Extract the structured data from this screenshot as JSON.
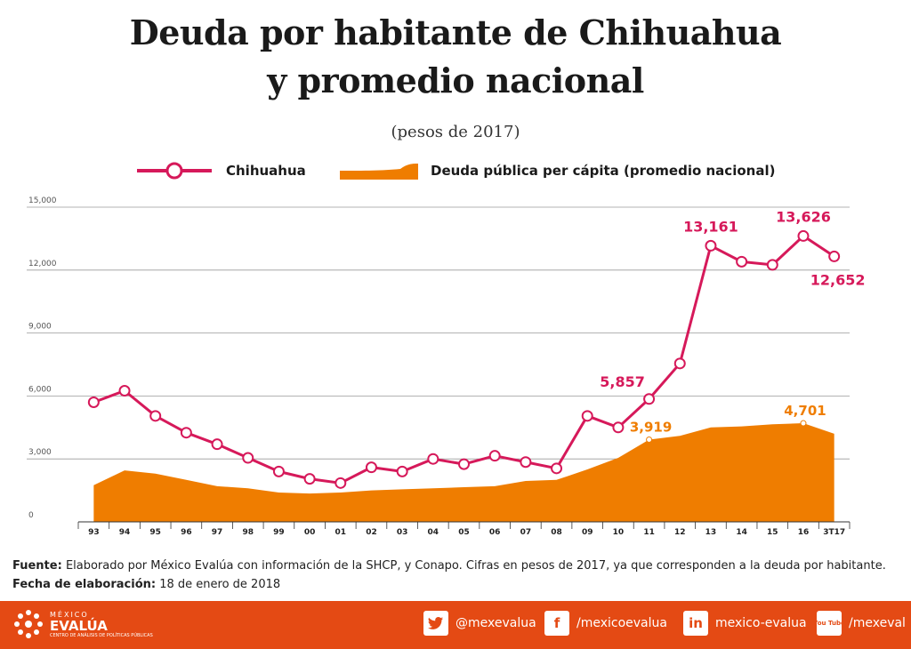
{
  "title_line1": "Deuda por habitante de Chihuahua",
  "title_line2": "y promedio nacional",
  "subtitle": "(pesos de 2017)",
  "legend": {
    "chihuahua": "Chihuahua",
    "national": "Deuda pública per cápita (promedio nacional)"
  },
  "colors": {
    "chihuahua": "#d6195a",
    "national": "#ef7d00",
    "footer": "#e44a14"
  },
  "chart_data": {
    "type": "line",
    "categories": [
      "93",
      "94",
      "95",
      "96",
      "97",
      "98",
      "99",
      "00",
      "01",
      "02",
      "03",
      "04",
      "05",
      "06",
      "07",
      "08",
      "09",
      "10",
      "11",
      "12",
      "13",
      "14",
      "15",
      "16",
      "3T17"
    ],
    "series": [
      {
        "name": "Chihuahua",
        "type": "line",
        "values": [
          5700,
          6250,
          5050,
          4250,
          3700,
          3050,
          2400,
          2050,
          1850,
          2600,
          2400,
          3000,
          2750,
          3150,
          2850,
          2550,
          5050,
          4500,
          5857,
          7550,
          13161,
          12400,
          12250,
          13626,
          12652
        ]
      },
      {
        "name": "Deuda pública per cápita (promedio nacional)",
        "type": "area",
        "values": [
          1750,
          2450,
          2300,
          2000,
          1700,
          1600,
          1400,
          1350,
          1400,
          1500,
          1550,
          1600,
          1650,
          1700,
          1950,
          2000,
          2500,
          3050,
          3919,
          4100,
          4500,
          4550,
          4650,
          4701,
          4200
        ]
      }
    ],
    "ylim": [
      0,
      15000
    ],
    "yticks": [
      "0",
      "3,000",
      "6,000",
      "9,000",
      "12,000",
      "15,000"
    ],
    "ytick_values": [
      0,
      3000,
      6000,
      9000,
      12000,
      15000
    ],
    "annotations": {
      "chihuahua": [
        {
          "index": 18,
          "label": "5,857"
        },
        {
          "index": 20,
          "label": "13,161"
        },
        {
          "index": 23,
          "label": "13,626"
        },
        {
          "index": 24,
          "label": "12,652"
        }
      ],
      "national": [
        {
          "index": 18,
          "label": "3,919"
        },
        {
          "index": 23,
          "label": "4,701"
        }
      ]
    },
    "grid": true
  },
  "footer": {
    "source_label": "Fuente:",
    "source_text": "Elaborado por México Evalúa con información de la SHCP, y Conapo. Cifras en pesos de 2017, ya que corresponden a la deuda por habitante.",
    "date_label": "Fecha de elaboración:",
    "date_text": "18 de enero de 2018"
  },
  "brand": {
    "line1": "MÉXICO",
    "line2": "EVALÚA",
    "line3": "CENTRO DE ANÁLISIS DE POLÍTICAS PÚBLICAS"
  },
  "social": {
    "twitter": "@mexevalua",
    "facebook": "/mexicoevalua",
    "linkedin": "mexico-evalua",
    "youtube": "/mexeval",
    "youtube_icon_text": "You Tube"
  }
}
